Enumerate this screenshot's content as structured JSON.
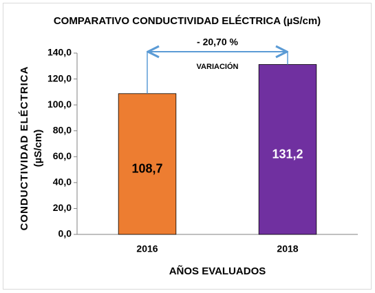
{
  "chart_data": {
    "type": "bar",
    "title": "COMPARATIVO CONDUCTIVIDAD ELÉCTRICA (µS/cm)",
    "y_label": [
      "CONDUCTIVIDAD ELÉCTRICA",
      "(µS/cm)"
    ],
    "x_label": "AÑOS EVALUADOS",
    "categories": [
      "2016",
      "2018"
    ],
    "values": [
      108.7,
      131.2
    ],
    "value_labels": [
      "108,7",
      "131,2"
    ],
    "colors": [
      "#ed7d31",
      "#7030a0"
    ],
    "ylim": [
      0,
      140
    ],
    "yticks": [
      {
        "value": 0,
        "label": "0,0"
      },
      {
        "value": 20,
        "label": "20,0"
      },
      {
        "value": 40,
        "label": "40,0"
      },
      {
        "value": 60,
        "label": "60,0"
      },
      {
        "value": 80,
        "label": "80,0"
      },
      {
        "value": 100,
        "label": "100,0"
      },
      {
        "value": 120,
        "label": "120,0"
      },
      {
        "value": 140,
        "label": "140,0"
      }
    ],
    "grid": false,
    "annotations": [
      "- 20,70 %",
      "VARIACIÓN"
    ],
    "annotation_color": "#5b9bd5"
  }
}
